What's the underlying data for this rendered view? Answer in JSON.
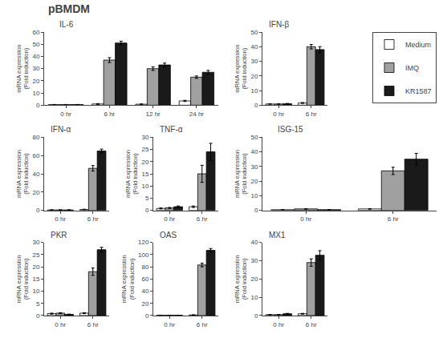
{
  "title": "pBMDM",
  "legend": "upper right",
  "chart_data": [
    {
      "type": "bar",
      "title": "IL-6",
      "ylabel": "mRNA expression\n(Fold induction)",
      "grid": false,
      "categories": [
        "0 hr",
        "6 hr",
        "12 hr",
        "24 hr"
      ],
      "ylim": [
        0,
        60
      ],
      "yticks": [
        0,
        10,
        20,
        30,
        40,
        50,
        60
      ],
      "series": [
        {
          "name": "Medium",
          "color": "white",
          "values": [
            0.5,
            1.0,
            0.8,
            3.5
          ],
          "errors": [
            0.1,
            0.3,
            0.2,
            0.5
          ]
        },
        {
          "name": "IMQ",
          "color": "#a0a0a0",
          "values": [
            0.5,
            37.0,
            30.0,
            23.0
          ],
          "errors": [
            0.1,
            2.0,
            1.5,
            1.0
          ]
        },
        {
          "name": "KR1587",
          "color": "#1a1a1a",
          "values": [
            0.5,
            51.0,
            33.0,
            27.0
          ],
          "errors": [
            0.1,
            1.5,
            1.5,
            1.5
          ]
        }
      ]
    },
    {
      "type": "bar",
      "title": "IFN-β",
      "ylabel": "mRNA expression\n(Fold induction)",
      "grid": false,
      "categories": [
        "0 hr",
        "6 hr"
      ],
      "ylim": [
        0,
        50
      ],
      "yticks": [
        0,
        10,
        20,
        30,
        40,
        50
      ],
      "series": [
        {
          "name": "Medium",
          "color": "white",
          "values": [
            0.8,
            1.5
          ],
          "errors": [
            0.1,
            0.3
          ]
        },
        {
          "name": "IMQ",
          "color": "#a0a0a0",
          "values": [
            0.8,
            40.0
          ],
          "errors": [
            0.1,
            1.5
          ]
        },
        {
          "name": "KR1587",
          "color": "#1a1a1a",
          "values": [
            1.0,
            38.0
          ],
          "errors": [
            0.2,
            2.0
          ]
        }
      ]
    },
    {
      "type": "bar",
      "title": "IFN-α",
      "ylabel": "mRNA expression\n(Fold induction)",
      "grid": false,
      "categories": [
        "0 hr",
        "6 hr"
      ],
      "ylim": [
        0,
        80
      ],
      "yticks": [
        0,
        20,
        40,
        60,
        80
      ],
      "series": [
        {
          "name": "Medium",
          "color": "white",
          "values": [
            0.5,
            1.0
          ],
          "errors": [
            0.1,
            0.3
          ]
        },
        {
          "name": "IMQ",
          "color": "#a0a0a0",
          "values": [
            0.5,
            46.0
          ],
          "errors": [
            0.1,
            3.0
          ]
        },
        {
          "name": "KR1587",
          "color": "#1a1a1a",
          "values": [
            0.5,
            65.0
          ],
          "errors": [
            0.1,
            2.0
          ]
        }
      ]
    },
    {
      "type": "bar",
      "title": "TNF-α",
      "ylabel": "mRNA expression\n(Fold induction)",
      "grid": false,
      "categories": [
        "0 hr",
        "6 hr"
      ],
      "ylim": [
        0,
        30
      ],
      "yticks": [
        0,
        5,
        10,
        15,
        20,
        25,
        30
      ],
      "series": [
        {
          "name": "Medium",
          "color": "white",
          "values": [
            0.8,
            1.5
          ],
          "errors": [
            0.2,
            0.3
          ]
        },
        {
          "name": "IMQ",
          "color": "#a0a0a0",
          "values": [
            1.0,
            15.0
          ],
          "errors": [
            0.2,
            3.5
          ]
        },
        {
          "name": "KR1587",
          "color": "#1a1a1a",
          "values": [
            1.5,
            24.0
          ],
          "errors": [
            0.3,
            3.5
          ]
        }
      ]
    },
    {
      "type": "bar",
      "title": "ISG-15",
      "ylabel": "mRNA expression\n(Fold induction)",
      "grid": false,
      "categories": [
        "0 hr",
        "6 hr"
      ],
      "ylim": [
        0,
        50
      ],
      "yticks": [
        0,
        10,
        20,
        30,
        40,
        50
      ],
      "series": [
        {
          "name": "Medium",
          "color": "white",
          "values": [
            0.5,
            1.0
          ],
          "errors": [
            0.1,
            0.2
          ]
        },
        {
          "name": "IMQ",
          "color": "#a0a0a0",
          "values": [
            1.0,
            27.0
          ],
          "errors": [
            0.2,
            2.5
          ]
        },
        {
          "name": "KR1587",
          "color": "#1a1a1a",
          "values": [
            0.5,
            35.0
          ],
          "errors": [
            0.1,
            4.0
          ]
        }
      ]
    },
    {
      "type": "bar",
      "title": "PKR",
      "ylabel": "mRNA expression\n(Fold induction)",
      "grid": false,
      "categories": [
        "0 hr",
        "6 hr"
      ],
      "ylim": [
        0,
        30
      ],
      "yticks": [
        0,
        5,
        10,
        15,
        20,
        25,
        30
      ],
      "series": [
        {
          "name": "Medium",
          "color": "white",
          "values": [
            0.8,
            1.0
          ],
          "errors": [
            0.2,
            0.2
          ]
        },
        {
          "name": "IMQ",
          "color": "#a0a0a0",
          "values": [
            1.0,
            18.0
          ],
          "errors": [
            0.2,
            1.5
          ]
        },
        {
          "name": "KR1587",
          "color": "#1a1a1a",
          "values": [
            0.5,
            27.0
          ],
          "errors": [
            0.1,
            1.0
          ]
        }
      ]
    },
    {
      "type": "bar",
      "title": "OAS",
      "ylabel": "mRNA expression\n(Fold induction)",
      "grid": false,
      "categories": [
        "0 hr",
        "6 hr"
      ],
      "ylim": [
        0,
        120
      ],
      "yticks": [
        0,
        20,
        40,
        60,
        80,
        100,
        120
      ],
      "series": [
        {
          "name": "Medium",
          "color": "white",
          "values": [
            0.5,
            1.0
          ],
          "errors": [
            0.1,
            0.2
          ]
        },
        {
          "name": "IMQ",
          "color": "#a0a0a0",
          "values": [
            0.5,
            83.0
          ],
          "errors": [
            0.1,
            3.0
          ]
        },
        {
          "name": "KR1587",
          "color": "#1a1a1a",
          "values": [
            0.5,
            107.0
          ],
          "errors": [
            0.1,
            3.0
          ]
        }
      ]
    },
    {
      "type": "bar",
      "title": "MX1",
      "ylabel": "mRNA expression\n(Fold induction)",
      "grid": false,
      "categories": [
        "0 hr",
        "6 hr"
      ],
      "ylim": [
        0,
        40
      ],
      "yticks": [
        0,
        10,
        20,
        30,
        40
      ],
      "series": [
        {
          "name": "Medium",
          "color": "white",
          "values": [
            0.5,
            1.0
          ],
          "errors": [
            0.1,
            0.2
          ]
        },
        {
          "name": "IMQ",
          "color": "#a0a0a0",
          "values": [
            0.5,
            29.0
          ],
          "errors": [
            0.1,
            2.0
          ]
        },
        {
          "name": "KR1587",
          "color": "#1a1a1a",
          "values": [
            1.0,
            33.0
          ],
          "errors": [
            0.2,
            2.5
          ]
        }
      ]
    }
  ]
}
